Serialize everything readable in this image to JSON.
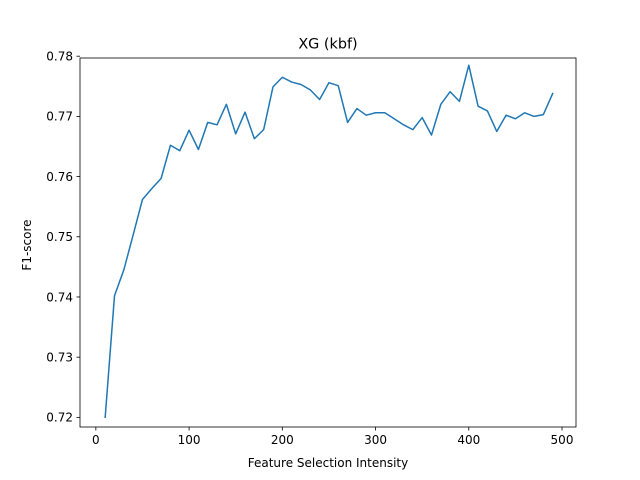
{
  "chart_data": {
    "type": "line",
    "title": "XG (kbf)",
    "xlabel": "Feature Selection Intensity",
    "ylabel": "F1-score",
    "xlim": [
      -17,
      515
    ],
    "ylim": [
      0.7184,
      0.7797
    ],
    "xticks": [
      0,
      100,
      200,
      300,
      400,
      500
    ],
    "yticks": [
      0.72,
      0.73,
      0.74,
      0.75,
      0.76,
      0.77,
      0.78
    ],
    "grid": false,
    "line_color": "#1f77b4",
    "series": [
      {
        "x": [
          10,
          20,
          30,
          40,
          50,
          60,
          70,
          80,
          90,
          100,
          110,
          120,
          130,
          140,
          150,
          160,
          170,
          180,
          190,
          200,
          210,
          220,
          230,
          240,
          250,
          260,
          270,
          280,
          290,
          300,
          310,
          320,
          330,
          340,
          350,
          360,
          370,
          380,
          390,
          400,
          410,
          420,
          430,
          440,
          450,
          460,
          470,
          480,
          490
        ],
        "values": [
          0.72,
          0.7402,
          0.7445,
          0.7503,
          0.7562,
          0.758,
          0.7597,
          0.7652,
          0.7643,
          0.7677,
          0.7645,
          0.769,
          0.7686,
          0.772,
          0.7671,
          0.7707,
          0.7663,
          0.7678,
          0.7749,
          0.7765,
          0.7757,
          0.7753,
          0.7744,
          0.7728,
          0.7756,
          0.7751,
          0.769,
          0.7713,
          0.7702,
          0.7706,
          0.7706,
          0.7696,
          0.7686,
          0.7678,
          0.7698,
          0.7669,
          0.772,
          0.7741,
          0.7725,
          0.7785,
          0.7717,
          0.7709,
          0.7675,
          0.7702,
          0.7696,
          0.7706,
          0.77,
          0.7703,
          0.7738
        ]
      }
    ]
  }
}
